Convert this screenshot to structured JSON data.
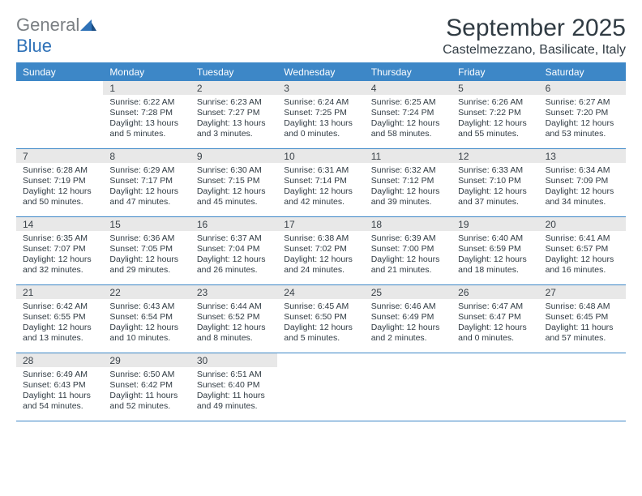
{
  "brand": {
    "general": "General",
    "blue": "Blue"
  },
  "title": {
    "month": "September 2025",
    "location": "Castelmezzano, Basilicate, Italy"
  },
  "colors": {
    "header_bg": "#3d87c7",
    "header_text": "#ffffff",
    "daynum_bg": "#e8e8e8",
    "text": "#303b43",
    "brand_grey": "#7a7f83",
    "brand_blue": "#2f72b8"
  },
  "weekdays": [
    "Sunday",
    "Monday",
    "Tuesday",
    "Wednesday",
    "Thursday",
    "Friday",
    "Saturday"
  ],
  "layout": {
    "first_weekday_index": 1,
    "days_in_month": 30
  },
  "days": {
    "1": {
      "sunrise": "Sunrise: 6:22 AM",
      "sunset": "Sunset: 7:28 PM",
      "day_a": "Daylight: 13 hours",
      "day_b": "and 5 minutes."
    },
    "2": {
      "sunrise": "Sunrise: 6:23 AM",
      "sunset": "Sunset: 7:27 PM",
      "day_a": "Daylight: 13 hours",
      "day_b": "and 3 minutes."
    },
    "3": {
      "sunrise": "Sunrise: 6:24 AM",
      "sunset": "Sunset: 7:25 PM",
      "day_a": "Daylight: 13 hours",
      "day_b": "and 0 minutes."
    },
    "4": {
      "sunrise": "Sunrise: 6:25 AM",
      "sunset": "Sunset: 7:24 PM",
      "day_a": "Daylight: 12 hours",
      "day_b": "and 58 minutes."
    },
    "5": {
      "sunrise": "Sunrise: 6:26 AM",
      "sunset": "Sunset: 7:22 PM",
      "day_a": "Daylight: 12 hours",
      "day_b": "and 55 minutes."
    },
    "6": {
      "sunrise": "Sunrise: 6:27 AM",
      "sunset": "Sunset: 7:20 PM",
      "day_a": "Daylight: 12 hours",
      "day_b": "and 53 minutes."
    },
    "7": {
      "sunrise": "Sunrise: 6:28 AM",
      "sunset": "Sunset: 7:19 PM",
      "day_a": "Daylight: 12 hours",
      "day_b": "and 50 minutes."
    },
    "8": {
      "sunrise": "Sunrise: 6:29 AM",
      "sunset": "Sunset: 7:17 PM",
      "day_a": "Daylight: 12 hours",
      "day_b": "and 47 minutes."
    },
    "9": {
      "sunrise": "Sunrise: 6:30 AM",
      "sunset": "Sunset: 7:15 PM",
      "day_a": "Daylight: 12 hours",
      "day_b": "and 45 minutes."
    },
    "10": {
      "sunrise": "Sunrise: 6:31 AM",
      "sunset": "Sunset: 7:14 PM",
      "day_a": "Daylight: 12 hours",
      "day_b": "and 42 minutes."
    },
    "11": {
      "sunrise": "Sunrise: 6:32 AM",
      "sunset": "Sunset: 7:12 PM",
      "day_a": "Daylight: 12 hours",
      "day_b": "and 39 minutes."
    },
    "12": {
      "sunrise": "Sunrise: 6:33 AM",
      "sunset": "Sunset: 7:10 PM",
      "day_a": "Daylight: 12 hours",
      "day_b": "and 37 minutes."
    },
    "13": {
      "sunrise": "Sunrise: 6:34 AM",
      "sunset": "Sunset: 7:09 PM",
      "day_a": "Daylight: 12 hours",
      "day_b": "and 34 minutes."
    },
    "14": {
      "sunrise": "Sunrise: 6:35 AM",
      "sunset": "Sunset: 7:07 PM",
      "day_a": "Daylight: 12 hours",
      "day_b": "and 32 minutes."
    },
    "15": {
      "sunrise": "Sunrise: 6:36 AM",
      "sunset": "Sunset: 7:05 PM",
      "day_a": "Daylight: 12 hours",
      "day_b": "and 29 minutes."
    },
    "16": {
      "sunrise": "Sunrise: 6:37 AM",
      "sunset": "Sunset: 7:04 PM",
      "day_a": "Daylight: 12 hours",
      "day_b": "and 26 minutes."
    },
    "17": {
      "sunrise": "Sunrise: 6:38 AM",
      "sunset": "Sunset: 7:02 PM",
      "day_a": "Daylight: 12 hours",
      "day_b": "and 24 minutes."
    },
    "18": {
      "sunrise": "Sunrise: 6:39 AM",
      "sunset": "Sunset: 7:00 PM",
      "day_a": "Daylight: 12 hours",
      "day_b": "and 21 minutes."
    },
    "19": {
      "sunrise": "Sunrise: 6:40 AM",
      "sunset": "Sunset: 6:59 PM",
      "day_a": "Daylight: 12 hours",
      "day_b": "and 18 minutes."
    },
    "20": {
      "sunrise": "Sunrise: 6:41 AM",
      "sunset": "Sunset: 6:57 PM",
      "day_a": "Daylight: 12 hours",
      "day_b": "and 16 minutes."
    },
    "21": {
      "sunrise": "Sunrise: 6:42 AM",
      "sunset": "Sunset: 6:55 PM",
      "day_a": "Daylight: 12 hours",
      "day_b": "and 13 minutes."
    },
    "22": {
      "sunrise": "Sunrise: 6:43 AM",
      "sunset": "Sunset: 6:54 PM",
      "day_a": "Daylight: 12 hours",
      "day_b": "and 10 minutes."
    },
    "23": {
      "sunrise": "Sunrise: 6:44 AM",
      "sunset": "Sunset: 6:52 PM",
      "day_a": "Daylight: 12 hours",
      "day_b": "and 8 minutes."
    },
    "24": {
      "sunrise": "Sunrise: 6:45 AM",
      "sunset": "Sunset: 6:50 PM",
      "day_a": "Daylight: 12 hours",
      "day_b": "and 5 minutes."
    },
    "25": {
      "sunrise": "Sunrise: 6:46 AM",
      "sunset": "Sunset: 6:49 PM",
      "day_a": "Daylight: 12 hours",
      "day_b": "and 2 minutes."
    },
    "26": {
      "sunrise": "Sunrise: 6:47 AM",
      "sunset": "Sunset: 6:47 PM",
      "day_a": "Daylight: 12 hours",
      "day_b": "and 0 minutes."
    },
    "27": {
      "sunrise": "Sunrise: 6:48 AM",
      "sunset": "Sunset: 6:45 PM",
      "day_a": "Daylight: 11 hours",
      "day_b": "and 57 minutes."
    },
    "28": {
      "sunrise": "Sunrise: 6:49 AM",
      "sunset": "Sunset: 6:43 PM",
      "day_a": "Daylight: 11 hours",
      "day_b": "and 54 minutes."
    },
    "29": {
      "sunrise": "Sunrise: 6:50 AM",
      "sunset": "Sunset: 6:42 PM",
      "day_a": "Daylight: 11 hours",
      "day_b": "and 52 minutes."
    },
    "30": {
      "sunrise": "Sunrise: 6:51 AM",
      "sunset": "Sunset: 6:40 PM",
      "day_a": "Daylight: 11 hours",
      "day_b": "and 49 minutes."
    }
  }
}
